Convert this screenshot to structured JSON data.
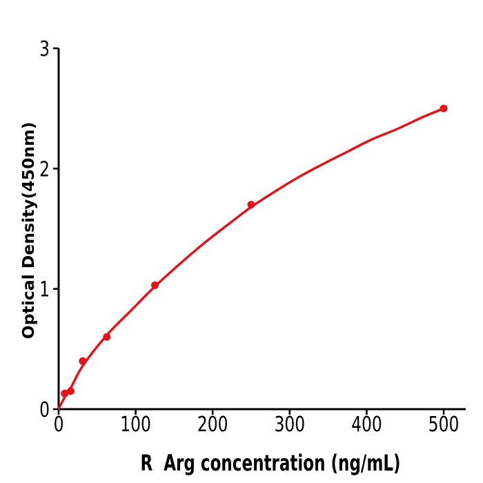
{
  "chart_data": {
    "type": "scatter",
    "title": "",
    "xlabel": "R  Arg concentration (ng/mL)",
    "ylabel": "Optical Density(450nm)",
    "x_tick_values": [
      0,
      100,
      200,
      300,
      400,
      500
    ],
    "x_tick_labels": [
      "0",
      "100",
      "200",
      "300",
      "400",
      "500"
    ],
    "y_tick_values": [
      0,
      1,
      2,
      3
    ],
    "y_tick_labels": [
      "0",
      "1",
      "2",
      "3"
    ],
    "xlim": [
      0,
      529
    ],
    "ylim": [
      0,
      3
    ],
    "grid": false,
    "legend": "none",
    "series": [
      {
        "name": "standard-points",
        "type": "scatter",
        "x": [
          7.8,
          15.6,
          31.25,
          62.5,
          125,
          250,
          500
        ],
        "y": [
          0.13,
          0.15,
          0.4,
          0.6,
          1.03,
          1.7,
          2.5
        ]
      },
      {
        "name": "fit-curve",
        "type": "line",
        "points": [
          [
            0,
            0.005
          ],
          [
            8,
            0.1
          ],
          [
            16,
            0.18
          ],
          [
            31.25,
            0.36
          ],
          [
            62.5,
            0.615
          ],
          [
            94,
            0.82
          ],
          [
            125,
            1.02
          ],
          [
            156,
            1.2
          ],
          [
            187,
            1.37
          ],
          [
            219,
            1.53
          ],
          [
            250,
            1.68
          ],
          [
            281,
            1.81
          ],
          [
            312,
            1.93
          ],
          [
            344,
            2.04
          ],
          [
            375,
            2.14
          ],
          [
            406,
            2.24
          ],
          [
            440,
            2.33
          ],
          [
            470,
            2.42
          ],
          [
            500,
            2.5
          ]
        ]
      }
    ],
    "colors": {
      "curve": "#e3131b",
      "marker": "#e3131b",
      "axis": "#000000",
      "text": "#000000",
      "background": "#ffffff"
    }
  }
}
